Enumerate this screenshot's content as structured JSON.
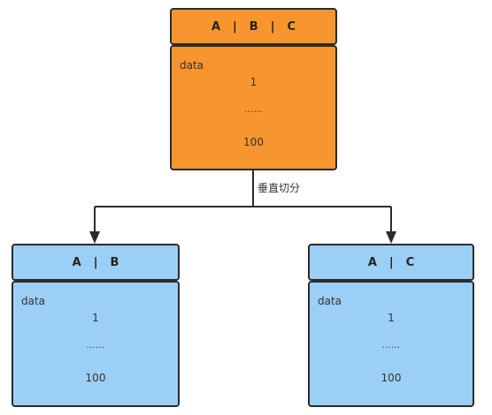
{
  "diagram": {
    "split_label": "垂直切分",
    "source_table": {
      "columns": [
        "A",
        "B",
        "C"
      ],
      "separator": "|",
      "data_label": "data",
      "first_value": "1",
      "ellipsis": "……",
      "last_value": "100",
      "color": "#f7962f"
    },
    "left_table": {
      "columns": [
        "A",
        "B"
      ],
      "separator": "|",
      "data_label": "data",
      "first_value": "1",
      "ellipsis": "……",
      "last_value": "100",
      "color": "#9ccff5"
    },
    "right_table": {
      "columns": [
        "A",
        "C"
      ],
      "separator": "|",
      "data_label": "data",
      "first_value": "1",
      "ellipsis": "……",
      "last_value": "100",
      "color": "#9ccff5"
    },
    "border_color": "#2b2b2b"
  }
}
